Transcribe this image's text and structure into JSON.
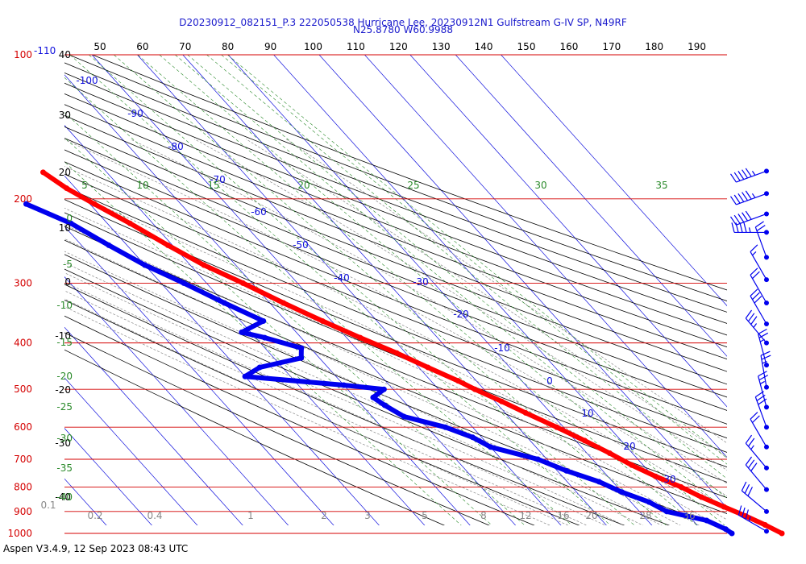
{
  "header": {
    "title_line1": "D20230912_082151_P.3 222050538 Hurricane Lee, 20230912N1 Gulfstream G-IV SP, N49RF",
    "title_line2": "N25.8780 W60.9988"
  },
  "footer": {
    "text": "Aspen V3.4.9, 12 Sep 2023  08:43 UTC"
  },
  "colors": {
    "pressure_line": "#d40000",
    "pressure_label": "#d40000",
    "isotherm": "#1010dd",
    "isotherm_label": "#1010dd",
    "dry_adiabat": "#000000",
    "moist_adiabat": "#888888",
    "mixing_ratio": "#2a8a2a",
    "temperature_profile": "#ff0000",
    "dewpoint_profile": "#0000ee",
    "wind_barb": "#0000ee"
  },
  "chart_data": {
    "type": "skew-t",
    "title": "D20230912_082151_P.3 222050538 Hurricane Lee, 20230912N1 Gulfstream G-IV SP, N49RF",
    "subtitle": "N25.8780 W60.9988",
    "pressure_levels": [
      {
        "p": 100,
        "label": "100"
      },
      {
        "p": 200,
        "label": "200"
      },
      {
        "p": 300,
        "label": "300"
      },
      {
        "p": 400,
        "label": "400"
      },
      {
        "p": 500,
        "label": "500"
      },
      {
        "p": 600,
        "label": "600"
      },
      {
        "p": 700,
        "label": "700"
      },
      {
        "p": 800,
        "label": "800"
      },
      {
        "p": 900,
        "label": "900"
      },
      {
        "p": 1000,
        "label": "1000"
      }
    ],
    "ylim": [
      100,
      1000
    ],
    "top_ticks": [
      "50",
      "60",
      "70",
      "80",
      "90",
      "100",
      "110",
      "120",
      "130",
      "140",
      "150",
      "160",
      "170",
      "180",
      "190"
    ],
    "top_left_label": "-110",
    "isotherm_labels": [
      "-100",
      "-90",
      "-80",
      "-70",
      "-60",
      "-50",
      "-40",
      "-30",
      "-20",
      "-10",
      "0",
      "10",
      "20",
      "30"
    ],
    "isotherm_values": [
      -100,
      -90,
      -80,
      -70,
      -60,
      -50,
      -40,
      -30,
      -20,
      -10,
      0,
      10,
      20,
      30
    ],
    "left_axis_labels": [
      "40",
      "30",
      "20",
      "10",
      "0",
      "-10",
      "-20",
      "-30",
      "-40"
    ],
    "mixing_ratio_top_labels": [
      "5",
      "10",
      "15",
      "20",
      "25",
      "30",
      "35"
    ],
    "mixing_ratio_left_labels": [
      "0",
      "-5",
      "-10",
      "-15",
      "-20",
      "-25",
      "-30",
      "-35",
      "-40"
    ],
    "mixing_ratio_bottom_labels": [
      "0.1",
      "0.2",
      "0.4",
      "1",
      "2",
      "3",
      "5",
      "8",
      "12",
      "16",
      "20",
      "28",
      "36",
      "40"
    ],
    "temperature_profile": [
      {
        "p": 176,
        "t": -64.0
      },
      {
        "p": 190,
        "t": -62.0
      },
      {
        "p": 205,
        "t": -59.0
      },
      {
        "p": 225,
        "t": -55.0
      },
      {
        "p": 250,
        "t": -51.0
      },
      {
        "p": 275,
        "t": -47.0
      },
      {
        "p": 300,
        "t": -42.0
      },
      {
        "p": 330,
        "t": -37.0
      },
      {
        "p": 360,
        "t": -32.0
      },
      {
        "p": 390,
        "t": -27.0
      },
      {
        "p": 420,
        "t": -22.0
      },
      {
        "p": 450,
        "t": -18.0
      },
      {
        "p": 480,
        "t": -14.0
      },
      {
        "p": 500,
        "t": -12.0
      },
      {
        "p": 530,
        "t": -8.5
      },
      {
        "p": 560,
        "t": -5.5
      },
      {
        "p": 600,
        "t": -1.5
      },
      {
        "p": 640,
        "t": 2.0
      },
      {
        "p": 680,
        "t": 5.0
      },
      {
        "p": 720,
        "t": 7.5
      },
      {
        "p": 760,
        "t": 10.5
      },
      {
        "p": 800,
        "t": 14.0
      },
      {
        "p": 840,
        "t": 16.5
      },
      {
        "p": 880,
        "t": 19.5
      },
      {
        "p": 920,
        "t": 22.5
      },
      {
        "p": 960,
        "t": 25.0
      },
      {
        "p": 1000,
        "t": 27.0
      }
    ],
    "dewpoint_profile": [
      {
        "p": 205,
        "td": -74.0
      },
      {
        "p": 225,
        "td": -68.0
      },
      {
        "p": 250,
        "td": -64.0
      },
      {
        "p": 275,
        "td": -60.0
      },
      {
        "p": 300,
        "td": -55.0
      },
      {
        "p": 330,
        "td": -50.0
      },
      {
        "p": 360,
        "td": -45.0
      },
      {
        "p": 380,
        "td": -52.0
      },
      {
        "p": 390,
        "td": -48.0
      },
      {
        "p": 410,
        "td": -42.0
      },
      {
        "p": 430,
        "td": -44.0
      },
      {
        "p": 450,
        "td": -55.0
      },
      {
        "p": 470,
        "td": -60.0
      },
      {
        "p": 490,
        "td": -40.0
      },
      {
        "p": 500,
        "td": -32.0
      },
      {
        "p": 520,
        "td": -36.0
      },
      {
        "p": 540,
        "td": -35.0
      },
      {
        "p": 570,
        "td": -33.0
      },
      {
        "p": 600,
        "td": -26.0
      },
      {
        "p": 630,
        "td": -22.0
      },
      {
        "p": 660,
        "td": -20.0
      },
      {
        "p": 700,
        "td": -12.0
      },
      {
        "p": 740,
        "td": -8.0
      },
      {
        "p": 780,
        "td": -3.0
      },
      {
        "p": 820,
        "td": 0.0
      },
      {
        "p": 860,
        "td": 4.0
      },
      {
        "p": 900,
        "td": 6.0
      },
      {
        "p": 940,
        "td": 13.0
      },
      {
        "p": 980,
        "td": 15.5
      },
      {
        "p": 1000,
        "td": 16.0
      }
    ],
    "wind_barbs": [
      {
        "p": 175,
        "speed_kt": 55,
        "dir_deg": 250
      },
      {
        "p": 195,
        "speed_kt": 55,
        "dir_deg": 250
      },
      {
        "p": 215,
        "speed_kt": 50,
        "dir_deg": 250
      },
      {
        "p": 235,
        "speed_kt": 45,
        "dir_deg": 270
      },
      {
        "p": 265,
        "speed_kt": 20,
        "dir_deg": 340
      },
      {
        "p": 295,
        "speed_kt": 15,
        "dir_deg": 330
      },
      {
        "p": 330,
        "speed_kt": 20,
        "dir_deg": 330
      },
      {
        "p": 365,
        "speed_kt": 30,
        "dir_deg": 330
      },
      {
        "p": 400,
        "speed_kt": 35,
        "dir_deg": 320
      },
      {
        "p": 445,
        "speed_kt": 25,
        "dir_deg": 345
      },
      {
        "p": 495,
        "speed_kt": 25,
        "dir_deg": 350
      },
      {
        "p": 545,
        "speed_kt": 25,
        "dir_deg": 345
      },
      {
        "p": 600,
        "speed_kt": 30,
        "dir_deg": 340
      },
      {
        "p": 660,
        "speed_kt": 20,
        "dir_deg": 330
      },
      {
        "p": 730,
        "speed_kt": 25,
        "dir_deg": 320
      },
      {
        "p": 810,
        "speed_kt": 30,
        "dir_deg": 320
      },
      {
        "p": 900,
        "speed_kt": 30,
        "dir_deg": 310
      },
      {
        "p": 990,
        "speed_kt": 35,
        "dir_deg": 300
      }
    ],
    "grid": true
  }
}
